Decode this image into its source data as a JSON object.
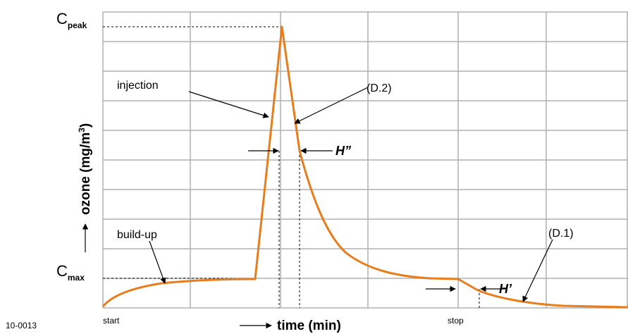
{
  "figure_id": "10-0013",
  "y_axis": {
    "label": "ozone (mg/m",
    "superscript": "3",
    "suffix": ")"
  },
  "x_axis": {
    "label": "time (min)"
  },
  "markers": {
    "c_peak": {
      "main": "C",
      "sub": "peak"
    },
    "c_max": {
      "main": "C",
      "sub": "max"
    }
  },
  "annotations": {
    "injection": "injection",
    "build_up": "build-up",
    "d2": "(D.2)",
    "d1": "(D.1)",
    "h_double": "H”",
    "h_single": "H’"
  },
  "x_labels": {
    "start": "start",
    "stop": "stop"
  },
  "colors": {
    "curve": "#e87d1e",
    "grid": "#b0b0b0",
    "axis": "#000000"
  }
}
